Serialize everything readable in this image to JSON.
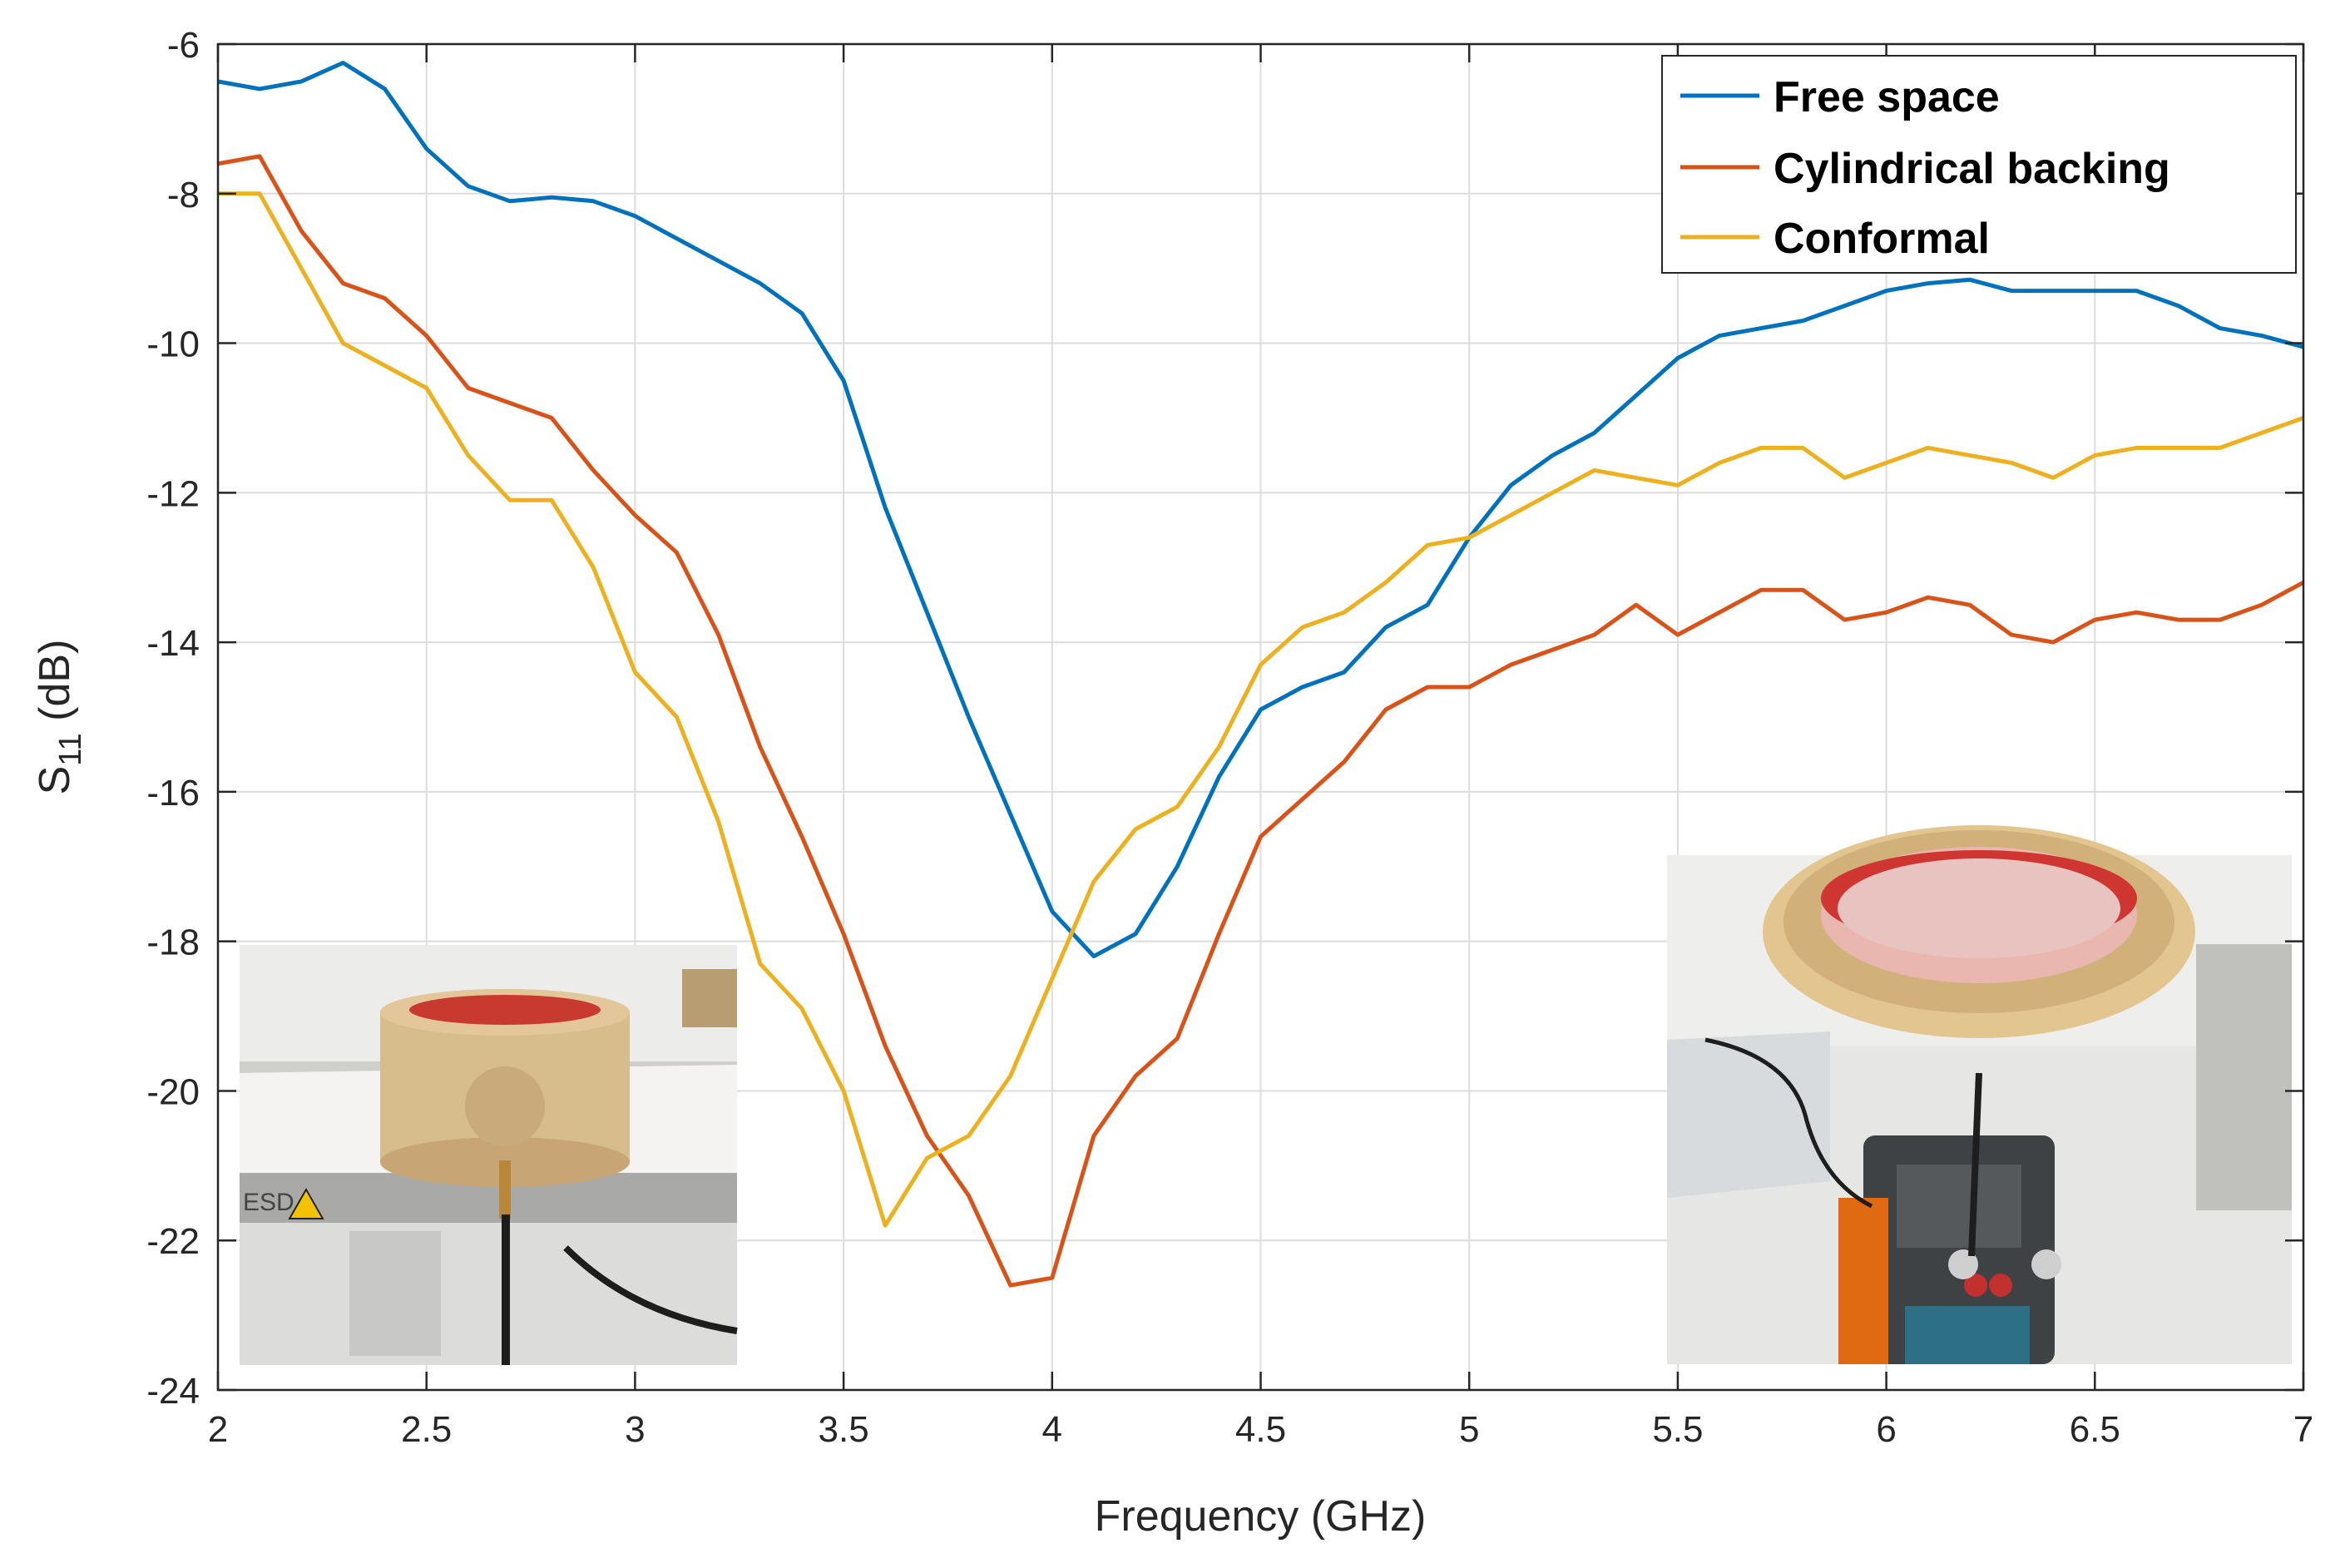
{
  "chart_data": {
    "type": "line",
    "xlabel": "Frequency (GHz)",
    "ylabel": {
      "main": "S",
      "sub": "11",
      "unit": " (dB)"
    },
    "xlim": [
      2,
      7
    ],
    "ylim": [
      -24,
      -6
    ],
    "xticks": [
      2,
      2.5,
      3,
      3.5,
      4,
      4.5,
      5,
      5.5,
      6,
      6.5,
      7
    ],
    "xtick_labels": [
      "2",
      "2.5",
      "3",
      "3.5",
      "4",
      "4.5",
      "5",
      "5.5",
      "6",
      "6.5",
      "7"
    ],
    "yticks": [
      -24,
      -22,
      -20,
      -18,
      -16,
      -14,
      -12,
      -10,
      -8,
      -6
    ],
    "ytick_labels": [
      "-24",
      "-22",
      "-20",
      "-18",
      "-16",
      "-14",
      "-12",
      "-10",
      "-8",
      "-6"
    ],
    "grid": true,
    "legend_position": "top-right",
    "series": [
      {
        "name": "Free space",
        "color": "#0072BD",
        "x": [
          2.0,
          2.1,
          2.2,
          2.3,
          2.4,
          2.5,
          2.6,
          2.7,
          2.8,
          2.9,
          3.0,
          3.1,
          3.2,
          3.3,
          3.4,
          3.5,
          3.6,
          3.7,
          3.8,
          3.9,
          4.0,
          4.1,
          4.2,
          4.3,
          4.4,
          4.5,
          4.6,
          4.7,
          4.8,
          4.9,
          5.0,
          5.1,
          5.2,
          5.3,
          5.4,
          5.5,
          5.6,
          5.7,
          5.8,
          5.9,
          6.0,
          6.1,
          6.2,
          6.3,
          6.4,
          6.5,
          6.6,
          6.7,
          6.8,
          6.9,
          7.0
        ],
        "y": [
          -6.5,
          -6.6,
          -6.5,
          -6.25,
          -6.6,
          -7.4,
          -7.9,
          -8.1,
          -8.05,
          -8.1,
          -8.3,
          -8.6,
          -8.9,
          -9.2,
          -9.6,
          -10.5,
          -12.2,
          -13.6,
          -15.0,
          -16.3,
          -17.6,
          -18.2,
          -17.9,
          -17.0,
          -15.8,
          -14.9,
          -14.6,
          -14.4,
          -13.8,
          -13.5,
          -12.6,
          -11.9,
          -11.5,
          -11.2,
          -10.7,
          -10.2,
          -9.9,
          -9.8,
          -9.7,
          -9.5,
          -9.3,
          -9.2,
          -9.15,
          -9.3,
          -9.3,
          -9.3,
          -9.3,
          -9.5,
          -9.8,
          -9.9,
          -10.05
        ]
      },
      {
        "name": "Cylindrical backing",
        "color": "#D95319",
        "x": [
          2.0,
          2.1,
          2.2,
          2.3,
          2.4,
          2.5,
          2.6,
          2.7,
          2.8,
          2.9,
          3.0,
          3.1,
          3.2,
          3.3,
          3.4,
          3.5,
          3.6,
          3.7,
          3.8,
          3.9,
          4.0,
          4.1,
          4.2,
          4.3,
          4.4,
          4.5,
          4.6,
          4.7,
          4.8,
          4.9,
          5.0,
          5.1,
          5.2,
          5.3,
          5.4,
          5.5,
          5.6,
          5.7,
          5.8,
          5.9,
          6.0,
          6.1,
          6.2,
          6.3,
          6.4,
          6.5,
          6.6,
          6.7,
          6.8,
          6.9,
          7.0
        ],
        "y": [
          -7.6,
          -7.5,
          -8.5,
          -9.2,
          -9.4,
          -9.9,
          -10.6,
          -10.8,
          -11.0,
          -11.7,
          -12.3,
          -12.8,
          -13.9,
          -15.4,
          -16.6,
          -17.9,
          -19.4,
          -20.6,
          -21.4,
          -22.6,
          -22.5,
          -20.6,
          -19.8,
          -19.3,
          -17.9,
          -16.6,
          -16.1,
          -15.6,
          -14.9,
          -14.6,
          -14.6,
          -14.3,
          -14.1,
          -13.9,
          -13.5,
          -13.9,
          -13.6,
          -13.3,
          -13.3,
          -13.7,
          -13.6,
          -13.4,
          -13.5,
          -13.9,
          -14.0,
          -13.7,
          -13.6,
          -13.7,
          -13.7,
          -13.5,
          -13.2
        ]
      },
      {
        "name": "Conformal",
        "color": "#EDB120",
        "x": [
          2.0,
          2.1,
          2.2,
          2.3,
          2.4,
          2.5,
          2.6,
          2.7,
          2.8,
          2.9,
          3.0,
          3.1,
          3.2,
          3.3,
          3.4,
          3.5,
          3.6,
          3.7,
          3.8,
          3.9,
          4.0,
          4.1,
          4.2,
          4.3,
          4.4,
          4.5,
          4.6,
          4.7,
          4.8,
          4.9,
          5.0,
          5.1,
          5.2,
          5.3,
          5.4,
          5.5,
          5.6,
          5.7,
          5.8,
          5.9,
          6.0,
          6.1,
          6.2,
          6.3,
          6.4,
          6.5,
          6.6,
          6.7,
          6.8,
          6.9,
          7.0
        ],
        "y": [
          -8.0,
          -8.0,
          -9.0,
          -10.0,
          -10.3,
          -10.6,
          -11.5,
          -12.1,
          -12.1,
          -13.0,
          -14.4,
          -15.0,
          -16.4,
          -18.3,
          -18.9,
          -20.0,
          -21.8,
          -20.9,
          -20.6,
          -19.8,
          -18.5,
          -17.2,
          -16.5,
          -16.2,
          -15.4,
          -14.3,
          -13.8,
          -13.6,
          -13.2,
          -12.7,
          -12.6,
          -12.3,
          -12.0,
          -11.7,
          -11.8,
          -11.9,
          -11.6,
          -11.4,
          -11.4,
          -11.8,
          -11.6,
          -11.4,
          -11.5,
          -11.6,
          -11.8,
          -11.5,
          -11.4,
          -11.4,
          -11.4,
          -11.2,
          -11.0
        ]
      }
    ],
    "insets": [
      {
        "name": "photo-inset-left",
        "description": "tape roll on white foam with connector"
      },
      {
        "name": "photo-inset-right",
        "description": "tape roll above vector network analyzer"
      }
    ]
  }
}
